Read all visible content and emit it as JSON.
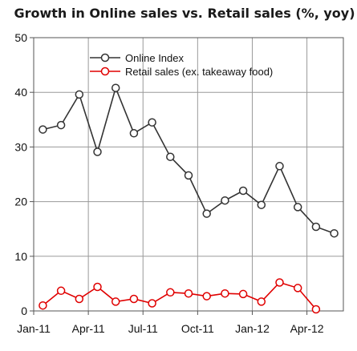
{
  "chart_data": {
    "type": "line",
    "title": "Growth in Online sales vs. Retail sales (%, yoy)",
    "xlabel": "",
    "ylabel": "",
    "ylim": [
      0,
      50
    ],
    "yticks": [
      "0",
      "10",
      "20",
      "30",
      "40",
      "50"
    ],
    "xticks": [
      "Jan-11",
      "Apr-11",
      "Jul-11",
      "Oct-11",
      "Jan-12",
      "Apr-12"
    ],
    "x": [
      "Jan-11",
      "Feb-11",
      "Mar-11",
      "Apr-11",
      "May-11",
      "Jun-11",
      "Jul-11",
      "Aug-11",
      "Sep-11",
      "Oct-11",
      "Nov-11",
      "Dec-11",
      "Jan-12",
      "Feb-12",
      "Mar-12",
      "Apr-12",
      "May-12"
    ],
    "grid": true,
    "legend": "top-center",
    "series": [
      {
        "name": "Online Index",
        "color": "#333333",
        "values": [
          33.2,
          34,
          39.6,
          29.1,
          40.8,
          32.5,
          34.5,
          28.2,
          24.8,
          17.8,
          20.2,
          22,
          19.4,
          26.5,
          19,
          15.4,
          14.2
        ]
      },
      {
        "name": "Retail sales (ex. takeaway food)",
        "color": "#e00000",
        "values": [
          1,
          3.7,
          2.2,
          4.4,
          1.7,
          2.2,
          1.4,
          3.4,
          3.2,
          2.7,
          3.2,
          3.1,
          1.7,
          5.2,
          4.2,
          0.3,
          null
        ]
      }
    ]
  }
}
